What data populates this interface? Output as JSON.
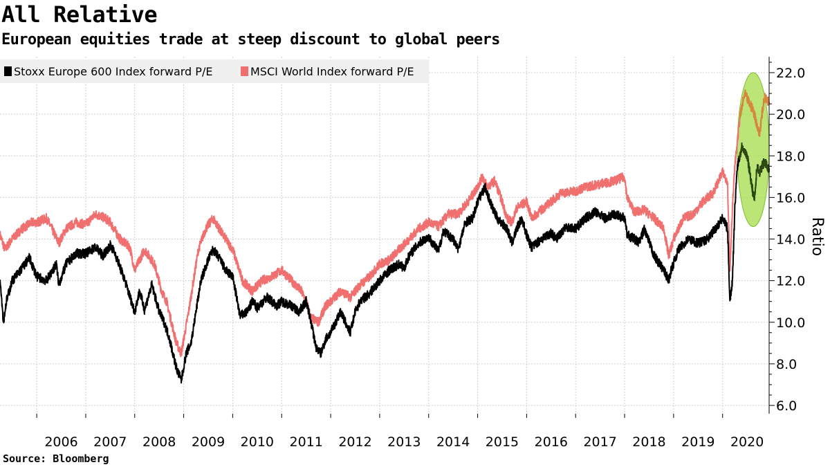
{
  "chart_data": {
    "type": "line",
    "title": "All Relative",
    "subtitle": "European equities trade at steep discount to global peers",
    "source": "Source: Bloomberg",
    "ylabel": "Ratio",
    "xlabel": "",
    "ylim": [
      6,
      22.5
    ],
    "yticks": [
      6,
      8,
      10,
      12,
      14,
      16,
      18,
      20,
      22
    ],
    "ytick_labels": [
      "6.0",
      "8.0",
      "10.0",
      "12.0",
      "14.0",
      "16.0",
      "18.0",
      "20.0",
      "22.0"
    ],
    "xlim": [
      2005.25,
      2020.95
    ],
    "xticks": [
      2006,
      2007,
      2008,
      2009,
      2010,
      2011,
      2012,
      2013,
      2014,
      2015,
      2016,
      2017,
      2018,
      2019,
      2020
    ],
    "grid": true,
    "legend_position": "top-left",
    "series": [
      {
        "name": "Stoxx Europe 600 Index forward P/E",
        "color": "#000000",
        "x": [
          2005.25,
          2005.32,
          2005.38,
          2005.5,
          2005.7,
          2005.85,
          2006.0,
          2006.2,
          2006.4,
          2006.45,
          2006.6,
          2006.8,
          2007.0,
          2007.2,
          2007.35,
          2007.5,
          2007.6,
          2007.8,
          2008.0,
          2008.1,
          2008.2,
          2008.35,
          2008.5,
          2008.6,
          2008.7,
          2008.78,
          2008.85,
          2008.95,
          2009.05,
          2009.15,
          2009.25,
          2009.35,
          2009.5,
          2009.6,
          2009.75,
          2009.85,
          2010.0,
          2010.15,
          2010.3,
          2010.4,
          2010.5,
          2010.7,
          2010.9,
          2011.0,
          2011.2,
          2011.35,
          2011.5,
          2011.6,
          2011.7,
          2011.8,
          2011.9,
          2012.0,
          2012.2,
          2012.4,
          2012.5,
          2012.6,
          2012.8,
          2013.0,
          2013.2,
          2013.4,
          2013.5,
          2013.6,
          2013.8,
          2014.0,
          2014.2,
          2014.3,
          2014.5,
          2014.6,
          2014.75,
          2014.9,
          2015.0,
          2015.15,
          2015.3,
          2015.4,
          2015.6,
          2015.7,
          2015.8,
          2015.9,
          2016.0,
          2016.1,
          2016.3,
          2016.5,
          2016.6,
          2016.8,
          2017.0,
          2017.2,
          2017.4,
          2017.6,
          2017.8,
          2018.0,
          2018.05,
          2018.2,
          2018.3,
          2018.4,
          2018.6,
          2018.8,
          2018.9,
          2018.95,
          2019.1,
          2019.3,
          2019.5,
          2019.7,
          2019.85,
          2020.0,
          2020.1,
          2020.15,
          2020.2,
          2020.23,
          2020.25,
          2020.3,
          2020.4,
          2020.5,
          2020.55,
          2020.6,
          2020.65,
          2020.7,
          2020.75,
          2020.85,
          2020.95
        ],
        "values": [
          12.2,
          10.0,
          11.0,
          12.0,
          12.6,
          13.1,
          12.2,
          12.0,
          12.8,
          11.8,
          12.8,
          13.3,
          13.3,
          13.6,
          13.2,
          13.7,
          13.3,
          12.0,
          10.5,
          11.5,
          10.6,
          11.8,
          10.5,
          10.0,
          9.3,
          8.5,
          7.8,
          7.2,
          8.5,
          9.0,
          10.5,
          12.0,
          13.0,
          13.5,
          13.0,
          12.5,
          12.2,
          10.3,
          10.5,
          11.0,
          10.7,
          11.2,
          10.8,
          11.0,
          10.8,
          10.5,
          11.0,
          10.0,
          8.8,
          8.5,
          9.2,
          9.5,
          10.5,
          9.5,
          10.5,
          11.0,
          11.4,
          12.0,
          12.5,
          12.8,
          12.6,
          13.2,
          13.8,
          14.1,
          13.4,
          14.4,
          14.0,
          13.5,
          14.8,
          15.0,
          15.8,
          16.5,
          15.5,
          15.0,
          14.5,
          13.8,
          14.5,
          15.0,
          14.2,
          13.6,
          14.0,
          14.3,
          14.0,
          14.6,
          14.5,
          15.0,
          15.3,
          15.0,
          15.2,
          15.0,
          14.2,
          14.0,
          13.8,
          14.5,
          13.2,
          12.5,
          12.0,
          12.5,
          13.5,
          14.0,
          13.8,
          14.0,
          14.5,
          15.0,
          14.5,
          11.0,
          12.0,
          14.0,
          15.5,
          17.5,
          18.5,
          18.0,
          17.3,
          16.5,
          15.8,
          17.5,
          17.2,
          17.7,
          17.4
        ]
      },
      {
        "name": "MSCI World Index forward P/E",
        "color": "#f07070",
        "x": [
          2005.25,
          2005.35,
          2005.5,
          2005.7,
          2005.9,
          2006.0,
          2006.2,
          2006.35,
          2006.45,
          2006.6,
          2006.8,
          2007.0,
          2007.2,
          2007.4,
          2007.5,
          2007.7,
          2007.9,
          2008.0,
          2008.2,
          2008.4,
          2008.55,
          2008.65,
          2008.75,
          2008.85,
          2008.95,
          2009.1,
          2009.2,
          2009.3,
          2009.45,
          2009.6,
          2009.8,
          2010.0,
          2010.2,
          2010.4,
          2010.6,
          2010.8,
          2011.0,
          2011.2,
          2011.4,
          2011.5,
          2011.6,
          2011.75,
          2011.9,
          2012.0,
          2012.2,
          2012.4,
          2012.6,
          2012.8,
          2013.0,
          2013.2,
          2013.4,
          2013.6,
          2013.8,
          2014.0,
          2014.2,
          2014.4,
          2014.6,
          2014.8,
          2014.95,
          2015.1,
          2015.2,
          2015.35,
          2015.5,
          2015.6,
          2015.7,
          2015.8,
          2016.0,
          2016.1,
          2016.3,
          2016.5,
          2016.7,
          2017.0,
          2017.2,
          2017.4,
          2017.6,
          2017.8,
          2018.0,
          2018.05,
          2018.2,
          2018.4,
          2018.6,
          2018.8,
          2018.9,
          2019.0,
          2019.2,
          2019.4,
          2019.6,
          2019.8,
          2020.0,
          2020.1,
          2020.15,
          2020.2,
          2020.25,
          2020.35,
          2020.45,
          2020.55,
          2020.6,
          2020.65,
          2020.75,
          2020.85,
          2020.95
        ],
        "values": [
          14.2,
          13.5,
          14.0,
          14.5,
          14.8,
          14.8,
          15.0,
          14.3,
          13.8,
          14.5,
          14.8,
          14.7,
          15.2,
          15.0,
          14.8,
          14.0,
          13.6,
          12.5,
          13.5,
          12.8,
          11.5,
          11.0,
          10.0,
          9.0,
          8.5,
          10.5,
          12.0,
          13.5,
          14.5,
          15.0,
          14.2,
          13.5,
          12.0,
          11.5,
          12.0,
          12.2,
          12.5,
          12.0,
          11.5,
          11.0,
          10.2,
          10.0,
          10.8,
          11.0,
          11.5,
          11.2,
          11.8,
          12.2,
          12.8,
          13.0,
          13.5,
          14.0,
          14.5,
          14.8,
          14.6,
          15.2,
          15.2,
          15.8,
          16.3,
          17.0,
          16.5,
          16.8,
          15.8,
          15.0,
          14.8,
          15.5,
          15.8,
          15.0,
          15.4,
          15.8,
          16.2,
          16.3,
          16.5,
          16.6,
          16.7,
          16.8,
          17.0,
          16.0,
          15.3,
          15.4,
          15.0,
          14.5,
          13.2,
          14.0,
          15.0,
          15.2,
          15.8,
          16.2,
          17.2,
          16.8,
          12.5,
          15.5,
          17.5,
          19.8,
          21.0,
          20.5,
          20.3,
          20.0,
          19.0,
          20.8,
          20.6
        ]
      }
    ],
    "highlight": {
      "shape": "ellipse",
      "color": "#a4dc48",
      "x_range": [
        2020.3,
        2020.95
      ],
      "y_range": [
        14.6,
        22.0
      ]
    }
  }
}
